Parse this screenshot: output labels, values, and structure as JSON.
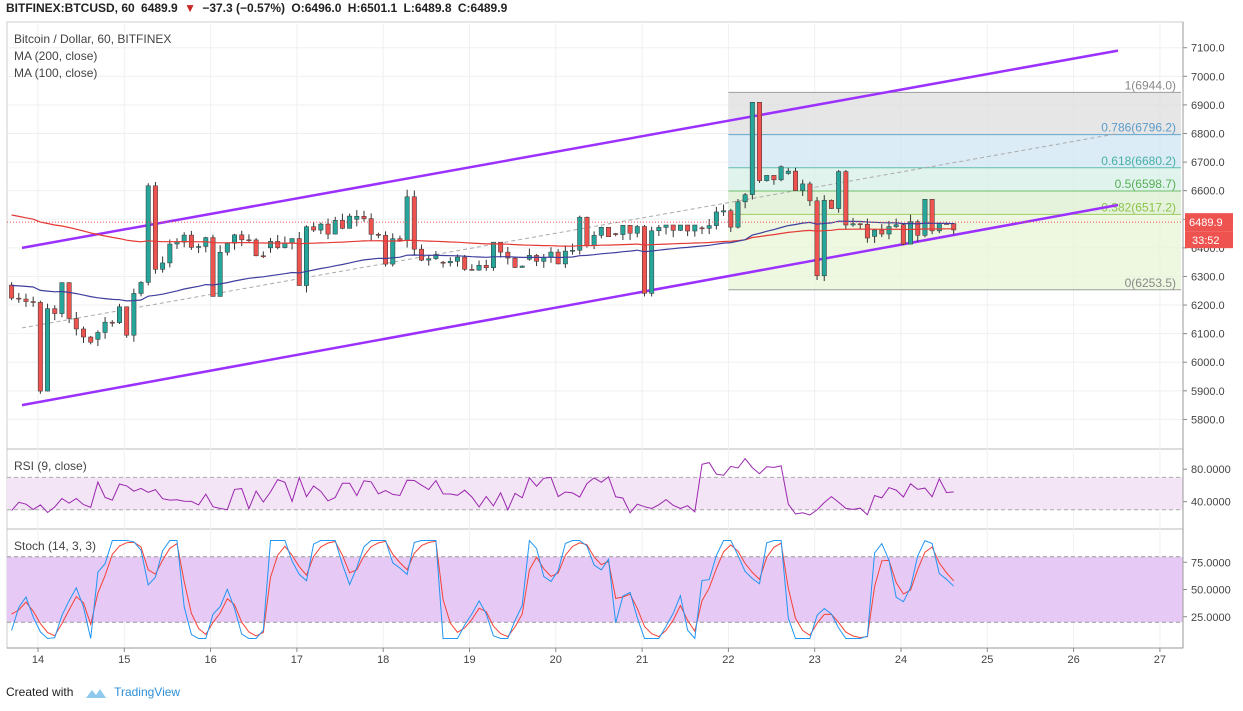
{
  "header": {
    "symbol": "BITFINEX:BTCUSD, 60",
    "last": "6489.9",
    "change": "−37.3 (−0.57%)",
    "open": "O:6496.0",
    "high": "H:6501.1",
    "low": "L:6489.8",
    "close": "C:6489.9"
  },
  "legend": {
    "title": "Bitcoin / Dollar, 60, BITFINEX",
    "ma200": "MA (200, close)",
    "ma100": "MA (100, close)",
    "rsi": "RSI (9, close)",
    "stoch": "Stoch (14, 3, 3)"
  },
  "price_tag": {
    "value": "6489.9",
    "timer": "33:52"
  },
  "footer": {
    "created": "Created with",
    "brand": "TradingView"
  },
  "colors": {
    "up": "#26a69a",
    "down": "#ef5350",
    "channel": "#9b30ff",
    "ma200": "#e53935",
    "ma100": "#3f3f9e",
    "rsi": "#9c27b0",
    "stoch_k": "#2196f3",
    "stoch_d": "#f44336",
    "band": "#e7c9f5"
  },
  "chart_data": {
    "type": "candlestick",
    "x_ticks": [
      "14",
      "15",
      "16",
      "17",
      "18",
      "19",
      "20",
      "21",
      "22",
      "23",
      "24",
      "25",
      "26",
      "27"
    ],
    "price_axis": [
      "7100.0",
      "7000.0",
      "6900.0",
      "6800.0",
      "6700.0",
      "6600.0",
      "6500.0",
      "6400.0",
      "6300.0",
      "6200.0",
      "6100.0",
      "6000.0",
      "5900.0",
      "5800.0"
    ],
    "price_range": [
      5700,
      7190
    ],
    "ohlc_daily_approx": [
      {
        "day": "14",
        "open": 6270,
        "high": 6280,
        "low": 5860,
        "close": 6080
      },
      {
        "day": "15",
        "open": 6080,
        "high": 6650,
        "low": 6050,
        "close": 6420
      },
      {
        "day": "16",
        "open": 6420,
        "high": 6460,
        "low": 6230,
        "close": 6400
      },
      {
        "day": "17",
        "open": 6400,
        "high": 6520,
        "low": 6240,
        "close": 6500
      },
      {
        "day": "18",
        "open": 6500,
        "high": 6610,
        "low": 6300,
        "close": 6350
      },
      {
        "day": "19",
        "open": 6350,
        "high": 6420,
        "low": 6320,
        "close": 6360
      },
      {
        "day": "20",
        "open": 6360,
        "high": 6550,
        "low": 6330,
        "close": 6450
      },
      {
        "day": "21",
        "open": 6450,
        "high": 6480,
        "low": 6230,
        "close": 6470
      },
      {
        "day": "22",
        "open": 6470,
        "high": 6910,
        "low": 6430,
        "close": 6660
      },
      {
        "day": "23",
        "open": 6660,
        "high": 6680,
        "low": 6255,
        "close": 6440
      },
      {
        "day": "24",
        "open": 6440,
        "high": 6570,
        "low": 6380,
        "close": 6490
      }
    ],
    "fibonacci": [
      {
        "label": "1(6944.0)",
        "value": 6944.0
      },
      {
        "label": "0.786(6796.2)",
        "value": 6796.2
      },
      {
        "label": "0.618(6680.2)",
        "value": 6680.2
      },
      {
        "label": "0.5(6598.7)",
        "value": 6598.7
      },
      {
        "label": "0.382(6517.2)",
        "value": 6517.2
      },
      {
        "label": "0(6253.5)",
        "value": 6253.5
      }
    ],
    "rsi": {
      "axis": [
        "80.0000",
        "40.0000"
      ],
      "range": [
        10,
        100
      ],
      "band": [
        70,
        30
      ],
      "values_daily_approx": [
        30,
        55,
        45,
        55,
        55,
        40,
        60,
        35,
        80,
        35,
        58
      ]
    },
    "stoch": {
      "axis": [
        "75.0000",
        "50.0000",
        "25.0000"
      ],
      "range": [
        0,
        100
      ],
      "band": [
        80,
        20
      ],
      "k_values_daily_approx": [
        20,
        88,
        20,
        85,
        85,
        15,
        85,
        15,
        80,
        10,
        68
      ]
    }
  }
}
